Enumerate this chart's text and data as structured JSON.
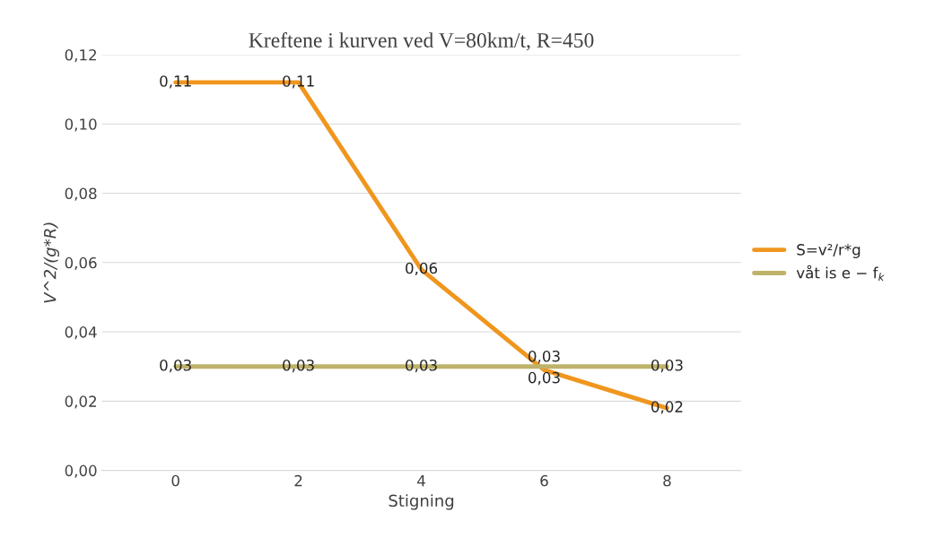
{
  "chart_data": {
    "type": "line",
    "title": "Kreftene i kurven ved V=80km/t, R=450",
    "xlabel": "Stigning",
    "ylabel": "V^2/(g*R)",
    "categories": [
      "0",
      "2",
      "4",
      "6",
      "8"
    ],
    "series": [
      {
        "name": "S=v²/r*g",
        "color": "#f0961e",
        "values": [
          0.112,
          0.112,
          0.058,
          0.029,
          0.018
        ],
        "value_labels": [
          "0,11",
          "0,11",
          "0,06",
          "0,03",
          "0,02"
        ]
      },
      {
        "name": "våt is e − f$_{k}$",
        "color": "#bfb26a",
        "values": [
          0.03,
          0.03,
          0.03,
          0.03,
          0.03
        ],
        "value_labels": [
          "0,03",
          "0,03",
          "0,03",
          "0,03",
          "0,03"
        ]
      }
    ],
    "ylim": [
      0,
      0.12
    ],
    "yticks": [
      {
        "value": 0,
        "label": "0,00"
      },
      {
        "value": 0.02,
        "label": "0,02"
      },
      {
        "value": 0.04,
        "label": "0,04"
      },
      {
        "value": 0.06,
        "label": "0,06"
      },
      {
        "value": 0.08,
        "label": "0,08"
      },
      {
        "value": 0.1,
        "label": "0,10"
      },
      {
        "value": 0.12,
        "label": "0,12"
      }
    ],
    "grid": "y",
    "legend": "right",
    "marker": "none",
    "line_style": "solid"
  }
}
